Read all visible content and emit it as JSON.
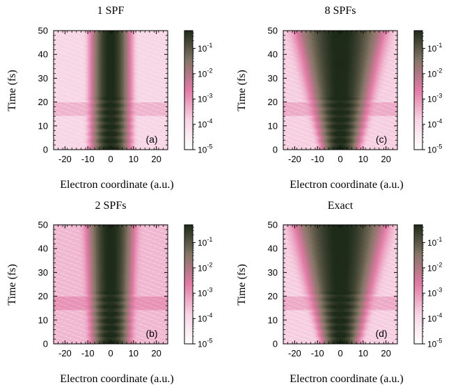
{
  "chart_data": [
    {
      "type": "heatmap",
      "title": "1 SPF",
      "panel_label": "(a)",
      "xlabel": "Electron coordinate (a.u.)",
      "ylabel": "Time (fs)",
      "xlim": [
        -25,
        25
      ],
      "ylim": [
        0,
        50
      ],
      "xticks": [
        -20,
        -10,
        0,
        10,
        20
      ],
      "yticks": [
        0,
        10,
        20,
        30,
        40,
        50
      ],
      "colorbar": {
        "scale": "log",
        "min": 1e-05,
        "max": 0.5,
        "tick_base": "10",
        "tick_exponents": [
          "-1",
          "-2",
          "-3",
          "-4",
          "-5"
        ]
      },
      "density_model": {
        "core_width_au": 2.6,
        "core_growth_au_per_fs": 0.0,
        "spread_rate_au_per_fs": 0.02,
        "spread_amplitude": 0.0005,
        "background": 0.00015
      }
    },
    {
      "type": "heatmap",
      "title": "8 SPFs",
      "panel_label": "(c)",
      "xlabel": "Electron coordinate (a.u.)",
      "ylabel": "Time (fs)",
      "xlim": [
        -25,
        25
      ],
      "ylim": [
        0,
        50
      ],
      "xticks": [
        -20,
        -10,
        0,
        10,
        20
      ],
      "yticks": [
        0,
        10,
        20,
        30,
        40,
        50
      ],
      "colorbar": {
        "scale": "log",
        "min": 1e-05,
        "max": 0.5,
        "tick_base": "10",
        "tick_exponents": [
          "-1",
          "-2",
          "-3",
          "-4",
          "-5"
        ]
      },
      "density_model": {
        "core_width_au": 2.4,
        "core_growth_au_per_fs": 0.065,
        "spread_rate_au_per_fs": 0.3,
        "spread_amplitude": 0.02,
        "background": 0.0002
      }
    },
    {
      "type": "heatmap",
      "title": "2 SPFs",
      "panel_label": "(b)",
      "xlabel": "Electron coordinate (a.u.)",
      "ylabel": "Time (fs)",
      "xlim": [
        -25,
        25
      ],
      "ylim": [
        0,
        50
      ],
      "xticks": [
        -20,
        -10,
        0,
        10,
        20
      ],
      "yticks": [
        0,
        10,
        20,
        30,
        40,
        50
      ],
      "colorbar": {
        "scale": "log",
        "min": 1e-05,
        "max": 0.5,
        "tick_base": "10",
        "tick_exponents": [
          "-1",
          "-2",
          "-3",
          "-4",
          "-5"
        ]
      },
      "density_model": {
        "core_width_au": 2.6,
        "core_growth_au_per_fs": 0.012,
        "spread_rate_au_per_fs": 0.05,
        "spread_amplitude": 0.002,
        "background": 0.0004
      }
    },
    {
      "type": "heatmap",
      "title": "Exact",
      "panel_label": "(d)",
      "xlabel": "Electron coordinate (a.u.)",
      "ylabel": "Time (fs)",
      "xlim": [
        -25,
        25
      ],
      "ylim": [
        0,
        50
      ],
      "xticks": [
        -20,
        -10,
        0,
        10,
        20
      ],
      "yticks": [
        0,
        10,
        20,
        30,
        40,
        50
      ],
      "colorbar": {
        "scale": "log",
        "min": 1e-05,
        "max": 0.5,
        "tick_base": "10",
        "tick_exponents": [
          "-1",
          "-2",
          "-3",
          "-4",
          "-5"
        ]
      },
      "density_model": {
        "core_width_au": 2.4,
        "core_growth_au_per_fs": 0.07,
        "spread_rate_au_per_fs": 0.3,
        "spread_amplitude": 0.022,
        "background": 0.0002
      }
    }
  ],
  "colormap": [
    "#ffffff",
    "#f7d5e4",
    "#e27ba6",
    "#857565",
    "#1e2b19"
  ]
}
